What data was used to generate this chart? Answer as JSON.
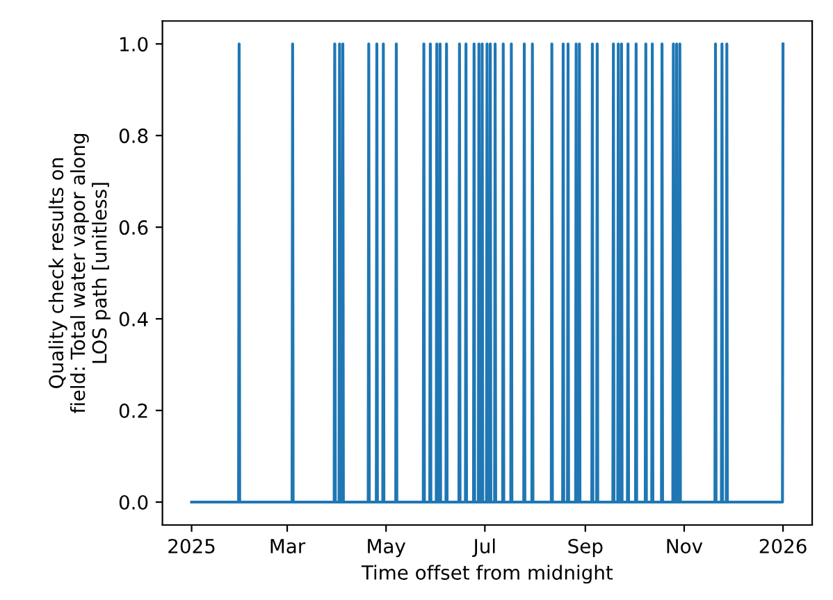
{
  "chart_data": {
    "type": "line",
    "xlabel": "Time offset from midnight",
    "ylabel": "Quality check results on\nfield: Total water vapor along\nLOS path [unitless]",
    "xlim": [
      "2024-12-14",
      "2026-01-19"
    ],
    "ylim": [
      -0.05,
      1.05
    ],
    "xticks": [
      {
        "value": "2025-01-01",
        "label": "2025"
      },
      {
        "value": "2025-03-01",
        "label": "Mar"
      },
      {
        "value": "2025-05-01",
        "label": "May"
      },
      {
        "value": "2025-07-01",
        "label": "Jul"
      },
      {
        "value": "2025-09-01",
        "label": "Sep"
      },
      {
        "value": "2025-11-01",
        "label": "Nov"
      },
      {
        "value": "2026-01-01",
        "label": "2026"
      }
    ],
    "yticks": [
      {
        "value": 0,
        "label": "0.0"
      },
      {
        "value": 0.2,
        "label": "0.2"
      },
      {
        "value": 0.4,
        "label": "0.4"
      },
      {
        "value": 0.6,
        "label": "0.6"
      },
      {
        "value": 0.8,
        "label": "0.8"
      },
      {
        "value": 1,
        "label": "1.0"
      }
    ],
    "grid": false,
    "series": [
      {
        "color": "#1f77b4",
        "x": [
          "2025-01-01T00:00",
          "2025-01-30T00:00",
          "2025-01-30T08:00",
          "2025-01-30T16:00",
          "2025-03-04T00:00",
          "2025-03-04T08:00",
          "2025-03-04T16:00",
          "2025-03-30T00:00",
          "2025-03-30T08:00",
          "2025-03-30T16:00",
          "2025-04-02T00:00",
          "2025-04-02T08:00",
          "2025-04-02T16:00",
          "2025-04-04T00:00",
          "2025-04-04T08:00",
          "2025-04-04T16:00",
          "2025-04-20T00:00",
          "2025-04-20T08:00",
          "2025-04-20T16:00",
          "2025-04-25T00:00",
          "2025-04-25T08:00",
          "2025-04-25T16:00",
          "2025-04-29T00:00",
          "2025-04-29T08:00",
          "2025-04-29T16:00",
          "2025-05-07T00:00",
          "2025-05-07T08:00",
          "2025-05-07T16:00",
          "2025-05-24T00:00",
          "2025-05-24T08:00",
          "2025-05-24T16:00",
          "2025-05-28T00:00",
          "2025-05-28T08:00",
          "2025-05-28T16:00",
          "2025-06-01T00:00",
          "2025-06-01T08:00",
          "2025-06-01T16:00",
          "2025-06-03T00:00",
          "2025-06-03T08:00",
          "2025-06-03T16:00",
          "2025-06-07T00:00",
          "2025-06-07T08:00",
          "2025-06-07T16:00",
          "2025-06-15T00:00",
          "2025-06-15T08:00",
          "2025-06-15T16:00",
          "2025-06-19T00:00",
          "2025-06-19T08:00",
          "2025-06-19T16:00",
          "2025-06-24T00:00",
          "2025-06-24T08:00",
          "2025-06-24T16:00",
          "2025-06-27T00:00",
          "2025-06-27T08:00",
          "2025-06-27T16:00",
          "2025-06-29T00:00",
          "2025-06-29T08:00",
          "2025-06-29T16:00",
          "2025-07-02T00:00",
          "2025-07-02T08:00",
          "2025-07-02T16:00",
          "2025-07-04T00:00",
          "2025-07-04T08:00",
          "2025-07-04T16:00",
          "2025-07-07T00:00",
          "2025-07-07T08:00",
          "2025-07-07T16:00",
          "2025-07-12T00:00",
          "2025-07-12T08:00",
          "2025-07-12T16:00",
          "2025-07-17T00:00",
          "2025-07-17T08:00",
          "2025-07-17T16:00",
          "2025-07-25T00:00",
          "2025-07-25T08:00",
          "2025-07-25T16:00",
          "2025-07-30T00:00",
          "2025-07-30T08:00",
          "2025-07-30T16:00",
          "2025-08-11T00:00",
          "2025-08-11T08:00",
          "2025-08-11T16:00",
          "2025-08-18T00:00",
          "2025-08-18T08:00",
          "2025-08-18T16:00",
          "2025-08-21T00:00",
          "2025-08-21T08:00",
          "2025-08-21T16:00",
          "2025-08-26T00:00",
          "2025-08-26T08:00",
          "2025-08-26T16:00",
          "2025-08-28T00:00",
          "2025-08-28T08:00",
          "2025-08-28T16:00",
          "2025-09-05T00:00",
          "2025-09-05T08:00",
          "2025-09-05T16:00",
          "2025-09-08T00:00",
          "2025-09-08T08:00",
          "2025-09-08T16:00",
          "2025-09-18T00:00",
          "2025-09-18T08:00",
          "2025-09-18T16:00",
          "2025-09-21T00:00",
          "2025-09-21T08:00",
          "2025-09-21T16:00",
          "2025-09-23T00:00",
          "2025-09-23T08:00",
          "2025-09-23T16:00",
          "2025-09-27T00:00",
          "2025-09-27T08:00",
          "2025-09-27T16:00",
          "2025-10-02T00:00",
          "2025-10-02T08:00",
          "2025-10-02T16:00",
          "2025-10-08T00:00",
          "2025-10-08T08:00",
          "2025-10-08T16:00",
          "2025-10-12T00:00",
          "2025-10-12T08:00",
          "2025-10-12T16:00",
          "2025-10-18T00:00",
          "2025-10-18T08:00",
          "2025-10-18T16:00",
          "2025-10-25T00:00",
          "2025-10-25T08:00",
          "2025-10-25T16:00",
          "2025-10-27T00:00",
          "2025-10-27T08:00",
          "2025-10-27T16:00",
          "2025-10-29T00:00",
          "2025-10-29T08:00",
          "2025-10-29T16:00",
          "2025-11-20T00:00",
          "2025-11-20T08:00",
          "2025-11-20T16:00",
          "2025-11-24T00:00",
          "2025-11-24T08:00",
          "2025-11-24T16:00",
          "2025-11-27T00:00",
          "2025-11-27T08:00",
          "2025-11-27T16:00",
          "2025-12-31T16:00",
          "2026-01-01T00:00"
        ],
        "values": [
          0,
          0,
          1,
          0,
          0,
          1,
          0,
          0,
          1,
          0,
          0,
          1,
          0,
          0,
          1,
          0,
          0,
          1,
          0,
          0,
          1,
          0,
          0,
          1,
          0,
          0,
          1,
          0,
          0,
          1,
          0,
          0,
          1,
          0,
          0,
          1,
          0,
          0,
          1,
          0,
          0,
          1,
          0,
          0,
          1,
          0,
          0,
          1,
          0,
          0,
          1,
          0,
          0,
          1,
          0,
          0,
          1,
          0,
          0,
          1,
          0,
          0,
          1,
          0,
          0,
          1,
          0,
          0,
          1,
          0,
          0,
          1,
          0,
          0,
          1,
          0,
          0,
          1,
          0,
          0,
          1,
          0,
          0,
          1,
          0,
          0,
          1,
          0,
          0,
          1,
          0,
          0,
          1,
          0,
          0,
          1,
          0,
          0,
          1,
          0,
          0,
          1,
          0,
          0,
          1,
          0,
          0,
          1,
          0,
          0,
          1,
          0,
          0,
          1,
          0,
          0,
          1,
          0,
          0,
          1,
          0,
          0,
          1,
          0,
          0,
          1,
          0,
          0,
          1,
          0,
          0,
          1,
          0,
          0,
          1,
          0,
          0,
          1,
          0,
          0,
          1,
          0,
          0,
          1
        ]
      }
    ]
  }
}
